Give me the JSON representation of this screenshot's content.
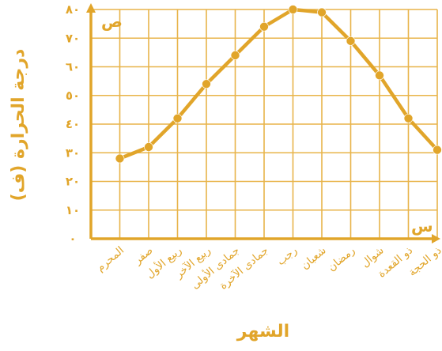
{
  "chart_data": {
    "type": "line",
    "xlabel": "الشهر",
    "ylabel": "درجة الحرارة (ف)",
    "x_axis_letter": "س",
    "y_axis_letter": "ص",
    "categories": [
      "المحرم",
      "صفر",
      "ربيع الأول",
      "ربيع الآخر",
      "جمادى الأولى",
      "جمادى الآخرة",
      "رجب",
      "شعبان",
      "رمضان",
      "شوال",
      "ذو القعدة",
      "ذو الحجة"
    ],
    "y_tick_labels": [
      "٠",
      "١٠",
      "٢٠",
      "٣٠",
      "٤٠",
      "٥٠",
      "٦٠",
      "٧٠",
      "٨٠"
    ],
    "ylim": [
      0,
      80
    ],
    "grid": true,
    "colors": {
      "accent": "#e1a52a",
      "grid": "#e8b44a"
    },
    "series": [
      {
        "values": [
          28,
          32,
          42,
          54,
          64,
          74,
          80,
          79,
          69,
          57,
          42,
          31
        ]
      }
    ]
  }
}
